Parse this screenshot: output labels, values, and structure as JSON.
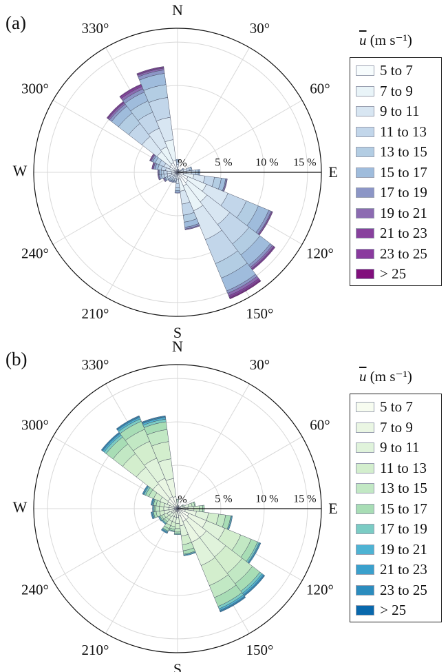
{
  "chart_data": [
    {
      "type": "windrose",
      "panel_label": "(a)",
      "legend_title": {
        "symbol": "u",
        "unit": " (m s⁻¹)"
      },
      "compass": {
        "N": "N",
        "E": "E",
        "S": "S",
        "W": "W"
      },
      "angle_labels": [
        "30°",
        "60°",
        "120°",
        "150°",
        "210°",
        "240°",
        "300°",
        "330°"
      ],
      "radial_labels": [
        "%",
        "5 %",
        "10 %",
        "15 %"
      ],
      "rmax_percent": 16.6,
      "directions_deg": [
        0,
        15,
        30,
        45,
        60,
        75,
        90,
        105,
        120,
        135,
        150,
        165,
        180,
        195,
        210,
        225,
        240,
        255,
        270,
        285,
        300,
        315,
        330,
        345
      ],
      "bins": [
        "5 to 7",
        "7 to 9",
        "9 to 11",
        "11 to 13",
        "13 to 15",
        "15 to 17",
        "17 to 19",
        "19 to 21",
        "21 to 23",
        "23 to 25",
        "> 25"
      ],
      "colors": [
        "#f7fcfd",
        "#e9f4f8",
        "#d8e6f2",
        "#c2d6ea",
        "#b3cde3",
        "#9fbcdc",
        "#8c96c6",
        "#8c6bb1",
        "#88419d",
        "#8a3a9e",
        "#810f7c"
      ],
      "frequency_percent": [
        [
          0.2,
          0.3,
          0.4,
          0.3,
          0.2,
          0.1,
          0.0,
          0.0,
          0.0,
          0.0,
          0.0
        ],
        [
          0.1,
          0.1,
          0.1,
          0.1,
          0.0,
          0.0,
          0.0,
          0.0,
          0.0,
          0.0,
          0.0
        ],
        [
          0.1,
          0.1,
          0.1,
          0.0,
          0.0,
          0.0,
          0.0,
          0.0,
          0.0,
          0.0,
          0.0
        ],
        [
          0.1,
          0.1,
          0.1,
          0.0,
          0.0,
          0.0,
          0.0,
          0.0,
          0.0,
          0.0,
          0.0
        ],
        [
          0.2,
          0.2,
          0.2,
          0.1,
          0.1,
          0.0,
          0.0,
          0.0,
          0.0,
          0.0,
          0.0
        ],
        [
          0.3,
          0.4,
          0.4,
          0.3,
          0.2,
          0.1,
          0.0,
          0.0,
          0.0,
          0.0,
          0.0
        ],
        [
          0.4,
          0.6,
          0.6,
          0.5,
          0.3,
          0.2,
          0.0,
          0.0,
          0.0,
          0.0,
          0.0
        ],
        [
          0.7,
          1.2,
          1.3,
          1.1,
          0.8,
          0.5,
          0.1,
          0.1,
          0.0,
          0.0,
          0.0
        ],
        [
          1.3,
          2.3,
          2.7,
          2.3,
          1.5,
          1.3,
          0.3,
          0.1,
          0.1,
          0.0,
          0.0
        ],
        [
          1.5,
          2.8,
          3.3,
          2.8,
          1.6,
          1.5,
          0.3,
          0.2,
          0.1,
          0.1,
          0.0
        ],
        [
          1.7,
          3.1,
          3.6,
          3.0,
          1.8,
          1.6,
          0.3,
          0.3,
          0.2,
          0.1,
          0.1
        ],
        [
          0.8,
          1.4,
          1.5,
          1.3,
          0.8,
          0.6,
          0.2,
          0.1,
          0.0,
          0.0,
          0.0
        ],
        [
          0.3,
          0.5,
          0.5,
          0.5,
          0.3,
          0.2,
          0.1,
          0.0,
          0.0,
          0.0,
          0.0
        ],
        [
          0.2,
          0.3,
          0.3,
          0.2,
          0.1,
          0.1,
          0.0,
          0.0,
          0.0,
          0.0,
          0.0
        ],
        [
          0.2,
          0.3,
          0.3,
          0.2,
          0.1,
          0.1,
          0.1,
          0.0,
          0.0,
          0.0,
          0.0
        ],
        [
          0.2,
          0.3,
          0.3,
          0.2,
          0.2,
          0.1,
          0.1,
          0.0,
          0.0,
          0.0,
          0.0
        ],
        [
          0.2,
          0.4,
          0.4,
          0.3,
          0.2,
          0.1,
          0.1,
          0.1,
          0.0,
          0.0,
          0.0
        ],
        [
          0.3,
          0.4,
          0.5,
          0.4,
          0.3,
          0.2,
          0.1,
          0.1,
          0.0,
          0.0,
          0.0
        ],
        [
          0.3,
          0.4,
          0.5,
          0.4,
          0.3,
          0.2,
          0.1,
          0.1,
          0.0,
          0.0,
          0.0
        ],
        [
          0.3,
          0.5,
          0.6,
          0.5,
          0.4,
          0.3,
          0.2,
          0.1,
          0.1,
          0.0,
          0.0
        ],
        [
          0.4,
          0.6,
          0.7,
          0.6,
          0.5,
          0.3,
          0.2,
          0.1,
          0.1,
          0.0,
          0.0
        ],
        [
          1.1,
          1.9,
          2.2,
          1.9,
          1.5,
          1.0,
          0.3,
          0.2,
          0.1,
          0.1,
          0.0
        ],
        [
          1.2,
          2.0,
          2.3,
          2.0,
          1.4,
          1.1,
          0.4,
          0.3,
          0.2,
          0.1,
          0.0
        ],
        [
          1.4,
          2.4,
          2.6,
          2.3,
          1.5,
          1.3,
          0.4,
          0.2,
          0.1,
          0.1,
          0.0
        ]
      ]
    },
    {
      "type": "windrose",
      "panel_label": "(b)",
      "legend_title": {
        "symbol": "u",
        "unit": " (m s⁻¹)"
      },
      "compass": {
        "N": "N",
        "E": "E",
        "S": "S",
        "W": "W"
      },
      "angle_labels": [
        "30°",
        "60°",
        "120°",
        "150°",
        "210°",
        "240°",
        "300°",
        "330°"
      ],
      "radial_labels": [
        "%",
        "5 %",
        "10 %",
        "15 %"
      ],
      "rmax_percent": 16.6,
      "directions_deg": [
        0,
        15,
        30,
        45,
        60,
        75,
        90,
        105,
        120,
        135,
        150,
        165,
        180,
        195,
        210,
        225,
        240,
        255,
        270,
        285,
        300,
        315,
        330,
        345
      ],
      "bins": [
        "5 to 7",
        "7 to 9",
        "9 to 11",
        "11 to 13",
        "13 to 15",
        "15 to 17",
        "17 to 19",
        "19 to 21",
        "21 to 23",
        "23 to 25",
        "> 25"
      ],
      "colors": [
        "#f7fcf0",
        "#eaf6e3",
        "#e0f3db",
        "#d3eecd",
        "#c2e8c4",
        "#a8ddb5",
        "#7bccc4",
        "#4eb3d3",
        "#3aa0cc",
        "#2b8cbe",
        "#0868ac"
      ],
      "frequency_percent": [
        [
          0.2,
          0.3,
          0.3,
          0.2,
          0.1,
          0.0,
          0.0,
          0.0,
          0.0,
          0.0,
          0.0
        ],
        [
          0.1,
          0.1,
          0.1,
          0.1,
          0.0,
          0.0,
          0.0,
          0.0,
          0.0,
          0.0,
          0.0
        ],
        [
          0.1,
          0.1,
          0.1,
          0.0,
          0.0,
          0.0,
          0.0,
          0.0,
          0.0,
          0.0,
          0.0
        ],
        [
          0.1,
          0.1,
          0.1,
          0.0,
          0.0,
          0.0,
          0.0,
          0.0,
          0.0,
          0.0,
          0.0
        ],
        [
          0.2,
          0.2,
          0.2,
          0.1,
          0.1,
          0.0,
          0.0,
          0.0,
          0.0,
          0.0,
          0.0
        ],
        [
          0.3,
          0.5,
          0.5,
          0.4,
          0.3,
          0.1,
          0.0,
          0.0,
          0.0,
          0.0,
          0.0
        ],
        [
          0.5,
          0.7,
          0.7,
          0.6,
          0.4,
          0.2,
          0.0,
          0.0,
          0.0,
          0.0,
          0.0
        ],
        [
          0.9,
          1.3,
          1.4,
          1.2,
          0.8,
          0.6,
          0.1,
          0.1,
          0.0,
          0.0,
          0.0
        ],
        [
          1.4,
          2.2,
          2.3,
          2.0,
          1.3,
          0.8,
          0.2,
          0.1,
          0.1,
          0.0,
          0.0
        ],
        [
          1.6,
          2.6,
          2.8,
          2.4,
          1.5,
          1.1,
          0.3,
          0.2,
          0.1,
          0.1,
          0.0
        ],
        [
          1.6,
          2.6,
          2.9,
          2.5,
          1.5,
          1.1,
          0.3,
          0.2,
          0.1,
          0.1,
          0.0
        ],
        [
          0.8,
          1.2,
          1.2,
          1.0,
          0.7,
          0.4,
          0.1,
          0.1,
          0.0,
          0.0,
          0.0
        ],
        [
          0.4,
          0.6,
          0.7,
          0.6,
          0.4,
          0.2,
          0.1,
          0.0,
          0.0,
          0.0,
          0.0
        ],
        [
          0.4,
          0.6,
          0.6,
          0.5,
          0.3,
          0.2,
          0.1,
          0.0,
          0.0,
          0.0,
          0.0
        ],
        [
          0.4,
          0.6,
          0.6,
          0.5,
          0.4,
          0.3,
          0.1,
          0.1,
          0.1,
          0.0,
          0.0
        ],
        [
          0.3,
          0.4,
          0.5,
          0.4,
          0.3,
          0.2,
          0.1,
          0.1,
          0.0,
          0.0,
          0.0
        ],
        [
          0.3,
          0.5,
          0.5,
          0.4,
          0.3,
          0.2,
          0.1,
          0.1,
          0.0,
          0.0,
          0.0
        ],
        [
          0.4,
          0.6,
          0.6,
          0.5,
          0.4,
          0.3,
          0.1,
          0.1,
          0.1,
          0.0,
          0.0
        ],
        [
          0.4,
          0.6,
          0.6,
          0.5,
          0.4,
          0.2,
          0.1,
          0.1,
          0.0,
          0.0,
          0.0
        ],
        [
          0.4,
          0.6,
          0.6,
          0.5,
          0.4,
          0.3,
          0.1,
          0.1,
          0.1,
          0.0,
          0.0
        ],
        [
          0.5,
          0.8,
          0.9,
          0.8,
          0.6,
          0.4,
          0.2,
          0.1,
          0.1,
          0.0,
          0.0
        ],
        [
          1.4,
          2.2,
          2.4,
          2.0,
          1.4,
          1.0,
          0.3,
          0.2,
          0.1,
          0.1,
          0.0
        ],
        [
          1.5,
          2.3,
          2.5,
          2.1,
          1.5,
          1.0,
          0.3,
          0.2,
          0.1,
          0.1,
          0.0
        ],
        [
          1.4,
          2.1,
          2.3,
          2.0,
          1.4,
          0.9,
          0.3,
          0.2,
          0.1,
          0.1,
          0.0
        ]
      ]
    }
  ]
}
